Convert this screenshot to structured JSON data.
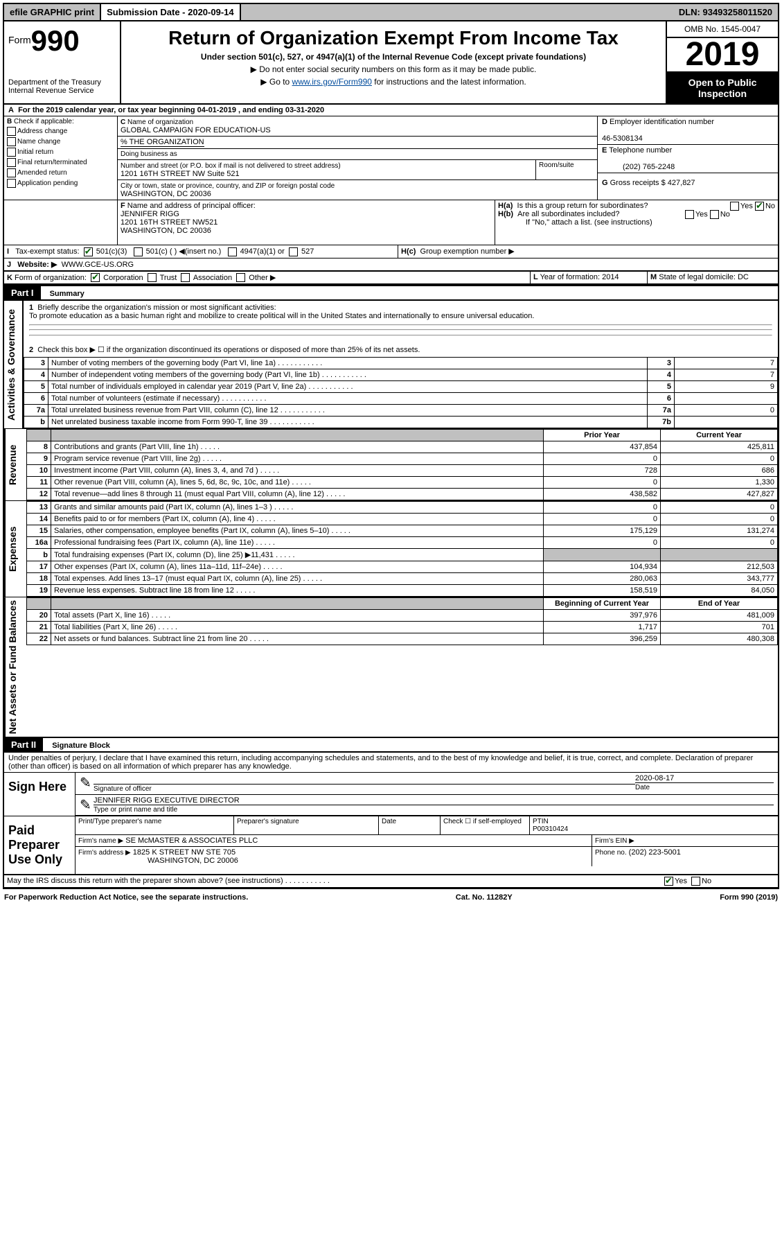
{
  "topbar": {
    "efile": "efile GRAPHIC print",
    "subdate_label": "Submission Date - ",
    "subdate": "2020-09-14",
    "dln_label": "DLN: ",
    "dln": "93493258011520"
  },
  "header": {
    "form_label": "Form",
    "form_no": "990",
    "dept": "Department of the Treasury",
    "irs": "Internal Revenue Service",
    "title": "Return of Organization Exempt From Income Tax",
    "sub1": "Under section 501(c), 527, or 4947(a)(1) of the Internal Revenue Code (except private foundations)",
    "sub2": "▶ Do not enter social security numbers on this form as it may be made public.",
    "sub3_pre": "▶ Go to ",
    "sub3_link": "www.irs.gov/Form990",
    "sub3_post": " for instructions and the latest information.",
    "omb": "OMB No. 1545-0047",
    "year": "2019",
    "open": "Open to Public Inspection"
  },
  "A": {
    "text": "For the 2019 calendar year, or tax year beginning 04-01-2019   , and ending 03-31-2020"
  },
  "B": {
    "label": "Check if applicable:",
    "opts": [
      "Address change",
      "Name change",
      "Initial return",
      "Final return/terminated",
      "Amended return",
      "Application pending"
    ]
  },
  "C": {
    "name_label": "Name of organization",
    "name": "GLOBAL CAMPAIGN FOR EDUCATION-US",
    "pct": "% THE ORGANIZATION",
    "dba": "Doing business as",
    "street_label": "Number and street (or P.O. box if mail is not delivered to street address)",
    "room_label": "Room/suite",
    "street": "1201 16TH STREET NW Suite 521",
    "city_label": "City or town, state or province, country, and ZIP or foreign postal code",
    "city": "WASHINGTON, DC  20036"
  },
  "D": {
    "label": "Employer identification number",
    "value": "46-5308134"
  },
  "E": {
    "label": "Telephone number",
    "value": "(202) 765-2248"
  },
  "G": {
    "label": "Gross receipts $",
    "value": "427,827"
  },
  "F": {
    "label": "Name and address of principal officer:",
    "name": "JENNIFER RIGG",
    "addr1": "1201 16TH STREET NW521",
    "addr2": "WASHINGTON, DC  20036"
  },
  "H": {
    "a": "Is this a group return for subordinates?",
    "b": "Are all subordinates included?",
    "ifno": "If \"No,\" attach a list. (see instructions)",
    "c": "Group exemption number ▶"
  },
  "I": {
    "label": "Tax-exempt status:",
    "v1": "501(c)(3)",
    "v2": "501(c) (  ) ◀(insert no.)",
    "v3": "4947(a)(1) or",
    "v4": "527"
  },
  "J": {
    "label": "Website: ▶",
    "value": "WWW.GCE-US.ORG"
  },
  "K": {
    "label": "Form of organization:",
    "opts": [
      "Corporation",
      "Trust",
      "Association",
      "Other ▶"
    ]
  },
  "L": {
    "label": "Year of formation:",
    "value": "2014"
  },
  "M": {
    "label": "State of legal domicile:",
    "value": "DC"
  },
  "part1": {
    "title": "Part I",
    "subtitle": "Summary",
    "q1": "Briefly describe the organization's mission or most significant activities:",
    "mission": "To promote education as a basic human right and mobilize to create political will in the United States and internationally to ensure universal education.",
    "q2": "Check this box ▶ ☐ if the organization discontinued its operations or disposed of more than 25% of its net assets.",
    "rows_gov": [
      {
        "n": "3",
        "t": "Number of voting members of the governing body (Part VI, line 1a)",
        "box": "3",
        "v": "7"
      },
      {
        "n": "4",
        "t": "Number of independent voting members of the governing body (Part VI, line 1b)",
        "box": "4",
        "v": "7"
      },
      {
        "n": "5",
        "t": "Total number of individuals employed in calendar year 2019 (Part V, line 2a)",
        "box": "5",
        "v": "9"
      },
      {
        "n": "6",
        "t": "Total number of volunteers (estimate if necessary)",
        "box": "6",
        "v": ""
      },
      {
        "n": "7a",
        "t": "Total unrelated business revenue from Part VIII, column (C), line 12",
        "box": "7a",
        "v": "0"
      },
      {
        "n": "b",
        "t": "Net unrelated business taxable income from Form 990-T, line 39",
        "box": "7b",
        "v": ""
      }
    ],
    "col_prior": "Prior Year",
    "col_curr": "Current Year",
    "rows_rev": [
      {
        "n": "8",
        "t": "Contributions and grants (Part VIII, line 1h)",
        "p": "437,854",
        "c": "425,811"
      },
      {
        "n": "9",
        "t": "Program service revenue (Part VIII, line 2g)",
        "p": "0",
        "c": "0"
      },
      {
        "n": "10",
        "t": "Investment income (Part VIII, column (A), lines 3, 4, and 7d )",
        "p": "728",
        "c": "686"
      },
      {
        "n": "11",
        "t": "Other revenue (Part VIII, column (A), lines 5, 6d, 8c, 9c, 10c, and 11e)",
        "p": "0",
        "c": "1,330"
      },
      {
        "n": "12",
        "t": "Total revenue—add lines 8 through 11 (must equal Part VIII, column (A), line 12)",
        "p": "438,582",
        "c": "427,827"
      }
    ],
    "rows_exp": [
      {
        "n": "13",
        "t": "Grants and similar amounts paid (Part IX, column (A), lines 1–3 )",
        "p": "0",
        "c": "0"
      },
      {
        "n": "14",
        "t": "Benefits paid to or for members (Part IX, column (A), line 4)",
        "p": "0",
        "c": "0"
      },
      {
        "n": "15",
        "t": "Salaries, other compensation, employee benefits (Part IX, column (A), lines 5–10)",
        "p": "175,129",
        "c": "131,274"
      },
      {
        "n": "16a",
        "t": "Professional fundraising fees (Part IX, column (A), line 11e)",
        "p": "0",
        "c": "0"
      },
      {
        "n": "b",
        "t": "Total fundraising expenses (Part IX, column (D), line 25) ▶11,431",
        "p": "shade",
        "c": "shade"
      },
      {
        "n": "17",
        "t": "Other expenses (Part IX, column (A), lines 11a–11d, 11f–24e)",
        "p": "104,934",
        "c": "212,503"
      },
      {
        "n": "18",
        "t": "Total expenses. Add lines 13–17 (must equal Part IX, column (A), line 25)",
        "p": "280,063",
        "c": "343,777"
      },
      {
        "n": "19",
        "t": "Revenue less expenses. Subtract line 18 from line 12",
        "p": "158,519",
        "c": "84,050"
      }
    ],
    "col_begin": "Beginning of Current Year",
    "col_end": "End of Year",
    "rows_net": [
      {
        "n": "20",
        "t": "Total assets (Part X, line 16)",
        "p": "397,976",
        "c": "481,009"
      },
      {
        "n": "21",
        "t": "Total liabilities (Part X, line 26)",
        "p": "1,717",
        "c": "701"
      },
      {
        "n": "22",
        "t": "Net assets or fund balances. Subtract line 21 from line 20",
        "p": "396,259",
        "c": "480,308"
      }
    ]
  },
  "part2": {
    "title": "Part II",
    "subtitle": "Signature Block",
    "decl": "Under penalties of perjury, I declare that I have examined this return, including accompanying schedules and statements, and to the best of my knowledge and belief, it is true, correct, and complete. Declaration of preparer (other than officer) is based on all information of which preparer has any knowledge.",
    "sign_here": "Sign Here",
    "sig_officer": "Signature of officer",
    "sig_date": "Date",
    "sig_date_v": "2020-08-17",
    "officer_name": "JENNIFER RIGG  EXECUTIVE DIRECTOR",
    "type_name": "Type or print name and title",
    "paid": "Paid Preparer Use Only",
    "prep_name_lbl": "Print/Type preparer's name",
    "prep_sig_lbl": "Preparer's signature",
    "date_lbl": "Date",
    "check_self": "Check ☐ if self-employed",
    "ptin_lbl": "PTIN",
    "ptin": "P00310424",
    "firm_name_lbl": "Firm's name    ▶",
    "firm_name": "SE McMASTER & ASSOCIATES PLLC",
    "firm_ein_lbl": "Firm's EIN ▶",
    "firm_addr_lbl": "Firm's address ▶",
    "firm_addr1": "1825 K STREET NW STE 705",
    "firm_addr2": "WASHINGTON, DC  20006",
    "phone_lbl": "Phone no.",
    "phone": "(202) 223-5001",
    "discuss": "May the IRS discuss this return with the preparer shown above? (see instructions)"
  },
  "footer": {
    "pra": "For Paperwork Reduction Act Notice, see the separate instructions.",
    "cat": "Cat. No. 11282Y",
    "form": "Form 990 (2019)"
  }
}
